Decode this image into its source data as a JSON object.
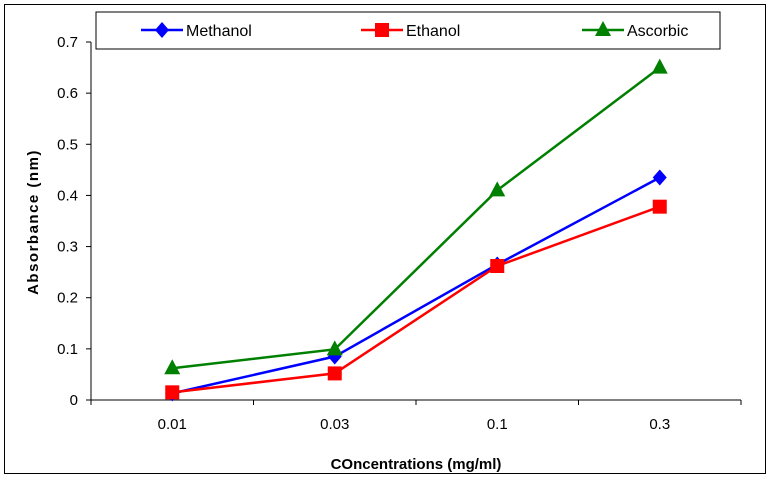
{
  "chart_data": {
    "type": "line",
    "title": "",
    "xlabel": "COncentrations (mg/ml)",
    "ylabel": "Absorbance (nm)",
    "categories": [
      "0.01",
      "0.03",
      "0.1",
      "0.3"
    ],
    "ylim": [
      0,
      0.7
    ],
    "yticks": [
      "0",
      "0.1",
      "0.2",
      "0.3",
      "0.4",
      "0.5",
      "0.6",
      "0.7"
    ],
    "grid": false,
    "legend_position": "top",
    "series": [
      {
        "name": "Methanol",
        "values": [
          0.013,
          0.085,
          0.265,
          0.435
        ],
        "color": "#0000ff",
        "marker": "diamond"
      },
      {
        "name": "Ethanol",
        "values": [
          0.015,
          0.052,
          0.262,
          0.378
        ],
        "color": "#ff0000",
        "marker": "square"
      },
      {
        "name": "Ascorbic",
        "values": [
          0.062,
          0.099,
          0.41,
          0.65
        ],
        "color": "#008000",
        "marker": "triangle"
      }
    ]
  }
}
